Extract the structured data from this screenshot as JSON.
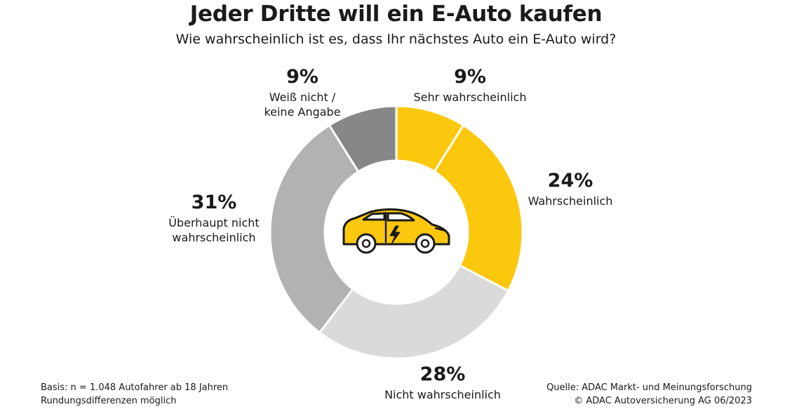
{
  "chart_data": {
    "type": "pie",
    "title": "Jeder Dritte will ein E-Auto kaufen",
    "subtitle": "Wie wahrscheinlich ist es, dass Ihr nächstes Auto ein E-Auto wird?",
    "unit": "%",
    "slices": [
      {
        "label_lines": [
          "Sehr wahrscheinlich"
        ],
        "value": 9,
        "value_label": "9%",
        "color": "#fcc80d"
      },
      {
        "label_lines": [
          "Wahrscheinlich"
        ],
        "value": 24,
        "value_label": "24%",
        "color": "#fcc80d"
      },
      {
        "label_lines": [
          "Nicht wahrscheinlich"
        ],
        "value": 28,
        "value_label": "28%",
        "color": "#dadada"
      },
      {
        "label_lines": [
          "Überhaupt nicht",
          "wahrscheinlich"
        ],
        "value": 31,
        "value_label": "31%",
        "color": "#b2b2b2"
      },
      {
        "label_lines": [
          "Weiß nicht /",
          "keine Angabe"
        ],
        "value": 9,
        "value_label": "9%",
        "color": "#878787"
      }
    ],
    "center_icon": "electric-car-icon"
  },
  "footer": {
    "basis": "Basis: n = 1.048 Autofahrer ab 18 Jahren",
    "rounding": "Rundungsdifferenzen möglich",
    "source": "Quelle: ADAC Markt- und Meinungsforschung",
    "copyright": "© ADAC Autoversicherung AG 06/2023"
  }
}
